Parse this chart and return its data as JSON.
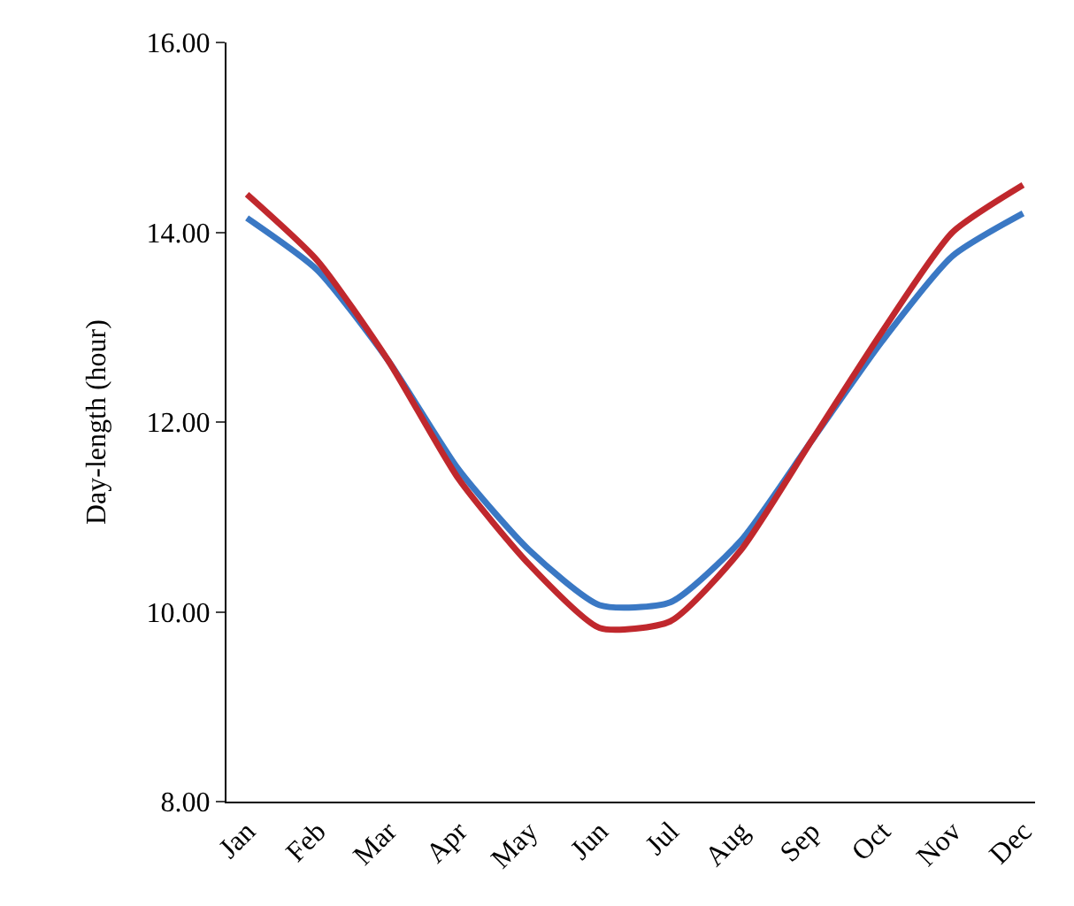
{
  "chart_data": {
    "type": "line",
    "ylabel": "Day-length (hour)",
    "categories": [
      "Jan",
      "Feb",
      "Mar",
      "Apr",
      "May",
      "Jun",
      "Jul",
      "Aug",
      "Sep",
      "Oct",
      "Nov",
      "Dec"
    ],
    "series": [
      {
        "color": "#3a78c4",
        "values": [
          14.15,
          13.6,
          12.65,
          11.5,
          10.65,
          10.07,
          10.1,
          10.75,
          11.8,
          12.85,
          13.75,
          14.2
        ]
      },
      {
        "color": "#c0282d",
        "values": [
          14.4,
          13.7,
          12.65,
          11.4,
          10.5,
          9.83,
          9.9,
          10.65,
          11.8,
          12.95,
          14.0,
          14.5
        ]
      }
    ],
    "ylim": [
      8,
      16
    ],
    "yticks": [
      {
        "value": 8,
        "label": "8.00"
      },
      {
        "value": 10,
        "label": "10.00"
      },
      {
        "value": 12,
        "label": "12.00"
      },
      {
        "value": 14,
        "label": "14.00"
      },
      {
        "value": 16,
        "label": "16.00"
      }
    ],
    "grid": false,
    "marker": "none",
    "line_style": "solid"
  }
}
